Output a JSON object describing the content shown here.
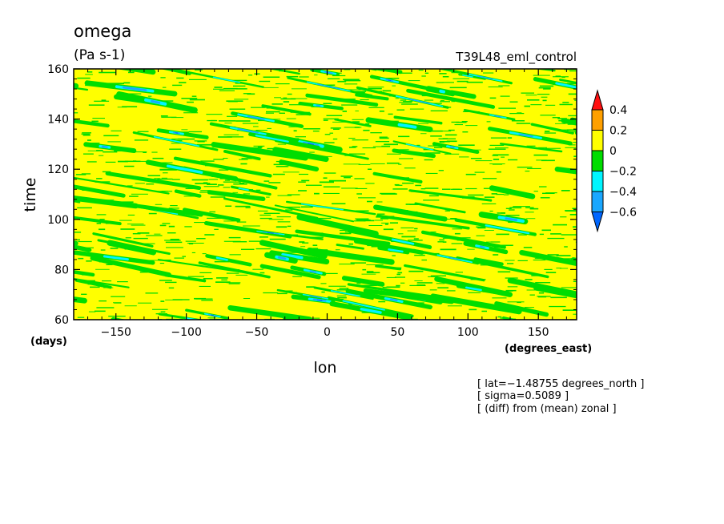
{
  "chart_data": {
    "type": "heatmap",
    "title": "omega",
    "units": "(Pa s-1)",
    "run_label": "T39L48_eml_control",
    "xlabel": "lon",
    "ylabel": "time",
    "x_units": "(degrees_east)",
    "y_units": "(days)",
    "xlim": [
      -180,
      177.1875
    ],
    "ylim": [
      60,
      160
    ],
    "x_ticks": [
      -150,
      -100,
      -50,
      0,
      50,
      100,
      150
    ],
    "x_tick_labels": [
      "−150",
      "−100",
      "−50",
      "0",
      "50",
      "100",
      "150"
    ],
    "y_ticks": [
      60,
      80,
      100,
      120,
      140,
      160
    ],
    "y_tick_labels": [
      "60",
      "80",
      "100",
      "120",
      "140",
      "160"
    ],
    "colorbar": {
      "levels": [
        -0.6,
        -0.4,
        -0.2,
        0,
        0.2,
        0.4
      ],
      "labels": [
        "−0.6",
        "−0.4",
        "−0.2",
        "0",
        "0.2",
        "0.4"
      ],
      "colors": [
        "#0066ff",
        "#1aa7ff",
        "#00f5ff",
        "#00dd00",
        "#ffff00",
        "#ffa000",
        "#ff1010"
      ],
      "extend": "both"
    },
    "annotations": [
      "[ lat=−1.48755 degrees_north ]",
      "[ sigma=0.5089 ]",
      "[ (diff) from (mean) zonal ]"
    ],
    "pattern": "westward-propagating negative omega anomalies (slanted streaks, roughly −20 deg lon per day) over a mostly 0 to 0.2 background"
  }
}
